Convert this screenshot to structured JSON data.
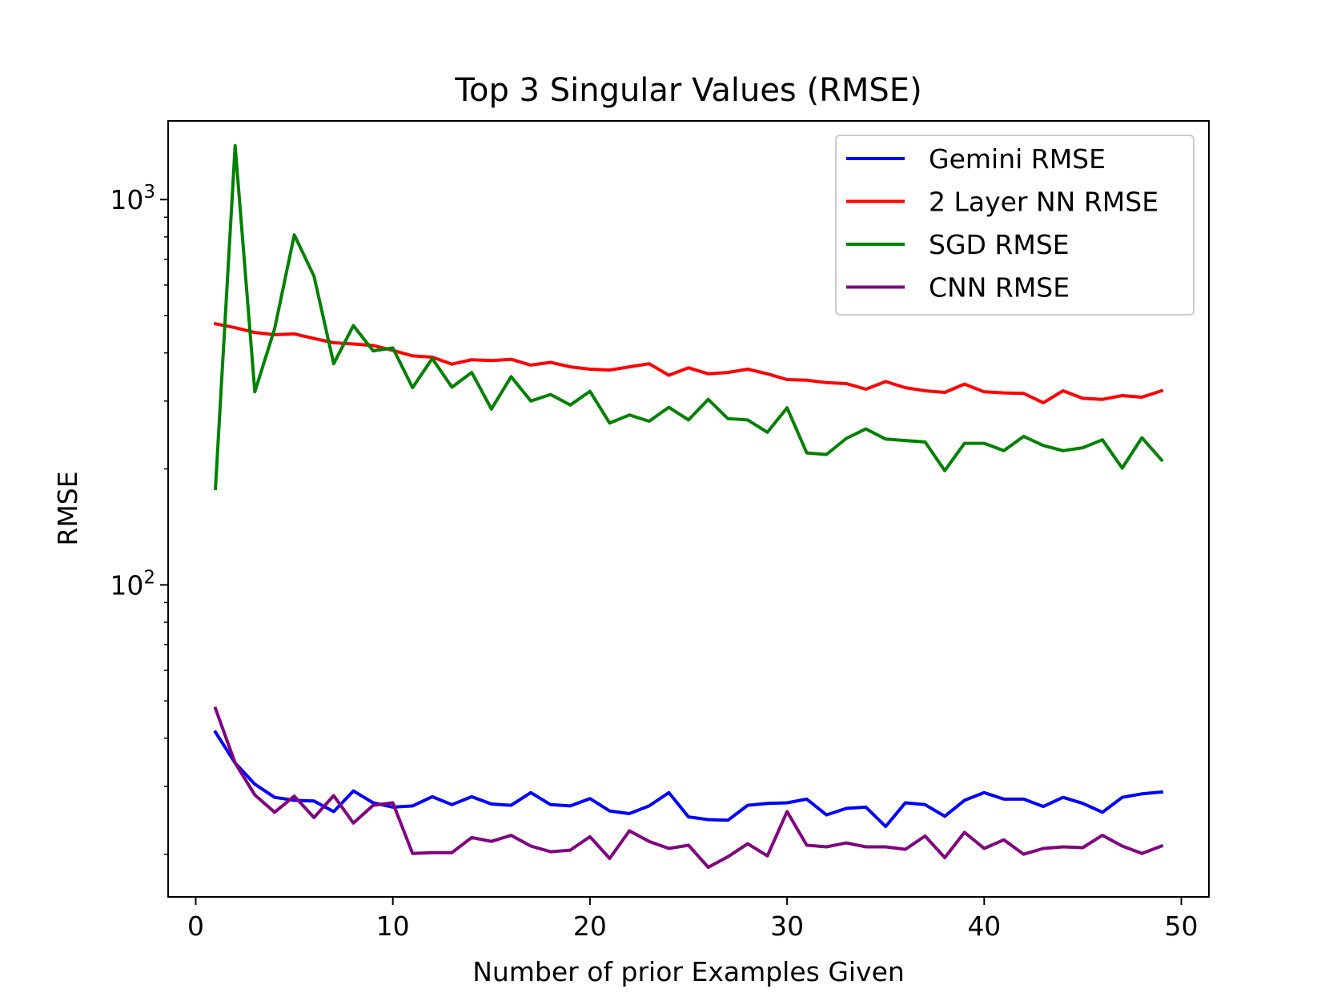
{
  "chart_data": {
    "type": "line",
    "title": "Top 3 Singular Values (RMSE)",
    "xlabel": "Number of prior Examples Given",
    "ylabel": "RMSE",
    "yscale": "log",
    "xlim": [
      -1.4,
      51.4
    ],
    "ylim": [
      15.5,
      1600
    ],
    "xticks": [
      {
        "value": 0,
        "label": "0"
      },
      {
        "value": 10,
        "label": "10"
      },
      {
        "value": 20,
        "label": "20"
      },
      {
        "value": 30,
        "label": "30"
      },
      {
        "value": 40,
        "label": "40"
      },
      {
        "value": 50,
        "label": "50"
      }
    ],
    "yticks": [
      {
        "value": 100,
        "base": "10",
        "exp": "2"
      },
      {
        "value": 1000,
        "base": "10",
        "exp": "3"
      }
    ],
    "grid": false,
    "legend_position": "top-right",
    "x": [
      1,
      2,
      3,
      4,
      5,
      6,
      7,
      8,
      9,
      10,
      11,
      12,
      13,
      14,
      15,
      16,
      17,
      18,
      19,
      20,
      21,
      22,
      23,
      24,
      25,
      26,
      27,
      28,
      29,
      30,
      31,
      32,
      33,
      34,
      35,
      36,
      37,
      38,
      39,
      40,
      41,
      42,
      43,
      44,
      45,
      46,
      47,
      48,
      49
    ],
    "series": [
      {
        "name": "Gemini RMSE",
        "color": "#0000ff",
        "values": [
          41.5,
          34.5,
          30.4,
          28.1,
          27.6,
          27.5,
          25.8,
          29.2,
          27.2,
          26.5,
          26.7,
          28.2,
          26.9,
          28.2,
          27.0,
          26.8,
          28.9,
          26.9,
          26.7,
          27.9,
          25.9,
          25.5,
          26.7,
          28.9,
          25.0,
          24.6,
          24.5,
          26.8,
          27.1,
          27.2,
          27.8,
          25.3,
          26.3,
          26.5,
          23.6,
          27.2,
          26.9,
          25.1,
          27.6,
          28.9,
          27.8,
          27.8,
          26.6,
          28.1,
          27.1,
          25.7,
          28.1,
          28.7,
          29.0
        ]
      },
      {
        "name": "2 Layer NN RMSE",
        "color": "#ff0000",
        "values": [
          476,
          465,
          452,
          446,
          448,
          436,
          425,
          422,
          418,
          406,
          393,
          390,
          374,
          384,
          382,
          385,
          372,
          378,
          368,
          363,
          361,
          368,
          375,
          350,
          366,
          353,
          356,
          363,
          353,
          341,
          340,
          335,
          333,
          322,
          337,
          325,
          319,
          316,
          332,
          317,
          315,
          314,
          297,
          319,
          305,
          303,
          310,
          307,
          319
        ]
      },
      {
        "name": "SGD RMSE",
        "color": "#008000",
        "values": [
          178,
          1380,
          317,
          462,
          810,
          633,
          375,
          471,
          405,
          412,
          325,
          387,
          326,
          356,
          286,
          347,
          300,
          312,
          293,
          318,
          263,
          276,
          266,
          289,
          268,
          303,
          270,
          268,
          249,
          288,
          220,
          218,
          240,
          254,
          239,
          237,
          235,
          198,
          233,
          233,
          223,
          243,
          230,
          223,
          227,
          238,
          201,
          241,
          211
        ]
      },
      {
        "name": "CNN RMSE",
        "color": "#800080",
        "values": [
          47.8,
          34.5,
          28.5,
          25.7,
          28.3,
          24.9,
          28.4,
          24.1,
          26.8,
          27.2,
          20.1,
          20.2,
          20.2,
          22.1,
          21.6,
          22.4,
          21.0,
          20.3,
          20.5,
          22.2,
          19.5,
          23.0,
          21.6,
          20.7,
          21.1,
          18.5,
          19.7,
          21.3,
          19.8,
          25.8,
          21.1,
          20.9,
          21.4,
          20.9,
          20.9,
          20.6,
          22.3,
          19.6,
          22.8,
          20.7,
          21.8,
          20.0,
          20.7,
          20.9,
          20.8,
          22.4,
          21.0,
          20.1,
          21.0
        ]
      }
    ]
  }
}
